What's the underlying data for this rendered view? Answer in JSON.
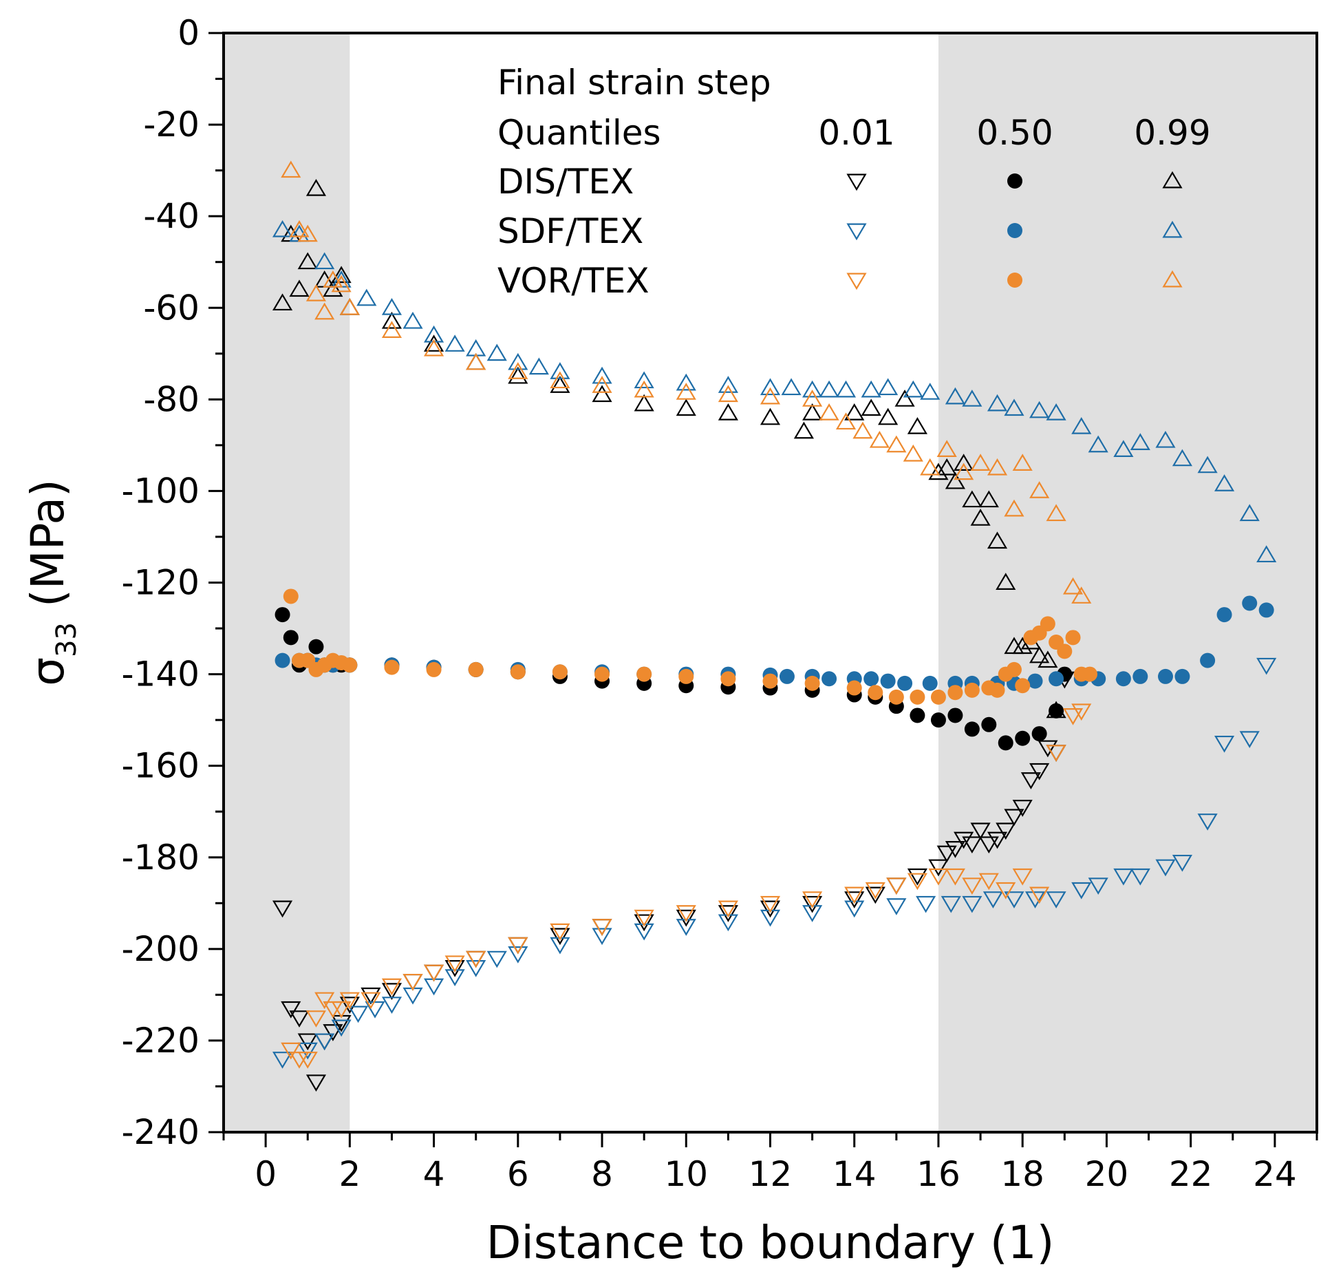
{
  "chart_data": {
    "type": "scatter",
    "xlabel": "Distance to boundary (1)",
    "ylabel": "σ33 (MPa)",
    "ylabel_main": "σ",
    "ylabel_sub": "33",
    "ylabel_unit": "(MPa)",
    "xlim": [
      -1,
      25
    ],
    "ylim": [
      -240,
      0
    ],
    "x_ticks": [
      0,
      2,
      4,
      6,
      8,
      10,
      12,
      14,
      16,
      18,
      20,
      22,
      24
    ],
    "y_ticks": [
      0,
      -20,
      -40,
      -60,
      -80,
      -100,
      -120,
      -140,
      -160,
      -180,
      -200,
      -220,
      -240
    ],
    "x_tick_labels": [
      "0",
      "2",
      "4",
      "6",
      "8",
      "10",
      "12",
      "14",
      "16",
      "18",
      "20",
      "22",
      "24"
    ],
    "y_tick_labels": [
      "0",
      "-20",
      "-40",
      "-60",
      "-80",
      "-100",
      "-120",
      "-140",
      "-160",
      "-180",
      "-200",
      "-220",
      "-240"
    ],
    "shaded_regions": [
      [
        -1,
        2
      ],
      [
        16,
        25
      ]
    ],
    "legend": {
      "title": "Final strain step",
      "header_label": "Quantiles",
      "quantiles": [
        "0.01",
        "0.50",
        "0.99"
      ],
      "rows": [
        "DIS/TEX",
        "SDF/TEX",
        "VOR/TEX"
      ]
    },
    "colors": {
      "DIS/TEX": "#000000",
      "SDF/TEX": "#1f6ea8",
      "VOR/TEX": "#ee8a2e",
      "shade": "#e0e0e0"
    },
    "marker_by_quantile": {
      "0.01": "triangle-down-open",
      "0.50": "circle-filled",
      "0.99": "triangle-up-open"
    },
    "series": [
      {
        "name": "DIS/TEX",
        "quantile": "0.01",
        "x": [
          0.4,
          0.6,
          0.8,
          1.0,
          1.2,
          1.4,
          1.6,
          1.8,
          2.0,
          2.5,
          3,
          3.5,
          4,
          4.5,
          5,
          6,
          7,
          8,
          9,
          10,
          11,
          12,
          13,
          14,
          14.5,
          15,
          15.5,
          16,
          16.2,
          16.4,
          16.6,
          16.8,
          17,
          17.2,
          17.4,
          17.6,
          17.8,
          18,
          18.2,
          18.4,
          18.6,
          18.8,
          19.0
        ],
        "y": [
          -191,
          -213,
          -215,
          -220,
          -229,
          -220,
          -218,
          -216,
          -212,
          -210,
          -209,
          -207,
          -205,
          -204,
          -202,
          -199,
          -197,
          -195,
          -194,
          -193,
          -192,
          -191,
          -190,
          -189,
          -188,
          -186,
          -184,
          -182,
          -179,
          -178,
          -176,
          -177,
          -174,
          -177,
          -176,
          -174,
          -171,
          -169,
          -163,
          -161,
          -156,
          -157,
          -141
        ]
      },
      {
        "name": "DIS/TEX",
        "quantile": "0.50",
        "x": [
          0.4,
          0.6,
          0.8,
          1.0,
          1.2,
          1.4,
          1.6,
          1.8,
          2,
          3,
          4,
          5,
          6,
          7,
          8,
          9,
          10,
          11,
          12,
          13,
          14,
          14.5,
          15,
          15.5,
          16,
          16.4,
          16.8,
          17.2,
          17.6,
          18,
          18.4,
          18.8,
          19
        ],
        "y": [
          -127,
          -132,
          -138,
          -137,
          -134,
          -138,
          -138,
          -138,
          -138,
          -138,
          -138.5,
          -139,
          -139.5,
          -140.5,
          -141.5,
          -142,
          -142.5,
          -142.8,
          -143,
          -143.5,
          -144.5,
          -145,
          -147,
          -149,
          -150,
          -149,
          -152,
          -151,
          -155,
          -154,
          -153,
          -148,
          -140
        ]
      },
      {
        "name": "DIS/TEX",
        "quantile": "0.99",
        "x": [
          0.4,
          0.6,
          0.8,
          1.0,
          1.2,
          1.4,
          1.6,
          1.8,
          2,
          3,
          4,
          5,
          6,
          7,
          8,
          9,
          10,
          11,
          12,
          12.8,
          13,
          14,
          14.4,
          14.8,
          15.2,
          15.5,
          16,
          16.2,
          16.4,
          16.6,
          16.8,
          17,
          17.2,
          17.4,
          17.6,
          17.8,
          18,
          18.2,
          18.4,
          18.6,
          18.8
        ],
        "y": [
          -59,
          -44,
          -56,
          -50,
          -34,
          -54,
          -56,
          -53,
          -60,
          -63,
          -68,
          -72,
          -75,
          -77,
          -79,
          -81,
          -82,
          -83,
          -84,
          -87,
          -83,
          -83,
          -82,
          -84,
          -80,
          -86,
          -96,
          -95,
          -98,
          -94,
          -102,
          -106,
          -102,
          -111,
          -120,
          -134,
          -134,
          -133,
          -136,
          -137,
          -148
        ]
      },
      {
        "name": "SDF/TEX",
        "quantile": "0.01",
        "x": [
          0.4,
          1,
          1.4,
          1.8,
          2.2,
          2.6,
          3,
          3.5,
          4,
          4.5,
          5,
          5.5,
          6,
          7,
          8,
          9,
          10,
          11,
          12,
          13,
          14,
          15,
          15.7,
          16.3,
          16.8,
          17.3,
          17.8,
          18.3,
          18.8,
          19.4,
          19.8,
          20.4,
          20.8,
          21.4,
          21.8,
          22.4,
          22.8,
          23.4,
          23.8
        ],
        "y": [
          -224,
          -222,
          -220,
          -217,
          -214,
          -213,
          -212,
          -210,
          -208,
          -206,
          -204,
          -202,
          -201,
          -199,
          -197,
          -196,
          -195,
          -194,
          -193,
          -192,
          -191,
          -190.5,
          -190,
          -190,
          -190,
          -189,
          -189,
          -189,
          -189,
          -187,
          -186,
          -184,
          -184,
          -182,
          -181,
          -172,
          -155,
          -154,
          -138
        ]
      },
      {
        "name": "SDF/TEX",
        "quantile": "0.50",
        "x": [
          0.4,
          0.8,
          1.2,
          1.6,
          2,
          3,
          4,
          5,
          6,
          7,
          8,
          9,
          10,
          11,
          12,
          12.4,
          13,
          13.4,
          14,
          14.4,
          14.8,
          15.2,
          15.8,
          16.4,
          16.8,
          17.4,
          17.8,
          18.3,
          18.8,
          19.4,
          19.8,
          20.4,
          20.8,
          21.4,
          21.8,
          22.4,
          22.8,
          23.4,
          23.8
        ],
        "y": [
          -137,
          -137,
          -138,
          -138,
          -138,
          -138,
          -138.5,
          -139,
          -139,
          -139.5,
          -139.5,
          -140,
          -140,
          -140,
          -140.2,
          -140.5,
          -140.5,
          -141,
          -141,
          -141,
          -141.5,
          -142,
          -142,
          -142,
          -142,
          -142,
          -142,
          -141.5,
          -141,
          -141,
          -141,
          -141,
          -140.5,
          -140.5,
          -140.5,
          -137,
          -127,
          -124.5,
          -126
        ]
      },
      {
        "name": "SDF/TEX",
        "quantile": "0.99",
        "x": [
          0.4,
          0.8,
          1.4,
          1.8,
          2.4,
          3,
          3.5,
          4,
          4.5,
          5,
          5.5,
          6,
          6.5,
          7,
          8,
          9,
          10,
          11,
          12,
          12.5,
          13,
          13.4,
          13.8,
          14.4,
          14.8,
          15.4,
          15.8,
          16.4,
          16.8,
          17.4,
          17.8,
          18.4,
          18.8,
          19.4,
          19.8,
          20.4,
          20.8,
          21.4,
          21.8,
          22.4,
          22.8,
          23.4,
          23.8
        ],
        "y": [
          -43,
          -44,
          -50,
          -54,
          -58,
          -60,
          -63,
          -66,
          -68,
          -69,
          -70,
          -72,
          -73,
          -74,
          -75,
          -76,
          -76.5,
          -77,
          -77.5,
          -77.5,
          -78,
          -78,
          -78,
          -78,
          -77.5,
          -78,
          -78.5,
          -79.5,
          -80,
          -81,
          -82,
          -82.5,
          -83,
          -86,
          -90,
          -91,
          -89.5,
          -89,
          -93,
          -94.5,
          -98.5,
          -105,
          -114
        ]
      },
      {
        "name": "VOR/TEX",
        "quantile": "0.01",
        "x": [
          0.6,
          0.8,
          1.0,
          1.2,
          1.4,
          1.6,
          1.8,
          2.0,
          2.5,
          3,
          3.5,
          4,
          4.5,
          5,
          6,
          7,
          8,
          9,
          10,
          11,
          12,
          13,
          14,
          14.5,
          15,
          15.5,
          16,
          16.4,
          16.8,
          17.2,
          17.6,
          18,
          18.4,
          18.8,
          19.2,
          19.4
        ],
        "y": [
          -222,
          -224,
          -224,
          -215,
          -211,
          -213,
          -213,
          -211,
          -211,
          -208,
          -207,
          -205,
          -203,
          -202,
          -199,
          -196,
          -195,
          -193,
          -192,
          -191,
          -190,
          -189,
          -188,
          -187,
          -186,
          -185,
          -184,
          -184,
          -186,
          -185,
          -187,
          -184,
          -188,
          -157,
          -149,
          -148
        ]
      },
      {
        "name": "VOR/TEX",
        "quantile": "0.50",
        "x": [
          0.6,
          0.8,
          1.0,
          1.2,
          1.4,
          1.6,
          1.8,
          2,
          3,
          4,
          5,
          6,
          7,
          8,
          9,
          10,
          11,
          12,
          13,
          14,
          14.5,
          15,
          15.5,
          16,
          16.4,
          16.8,
          17.2,
          17.4,
          17.6,
          17.8,
          18,
          18.2,
          18.4,
          18.6,
          18.8,
          19,
          19.2,
          19.4,
          19.6
        ],
        "y": [
          -123,
          -137,
          -137,
          -139,
          -138,
          -137,
          -137.5,
          -138,
          -138.5,
          -139,
          -139,
          -139.5,
          -139.5,
          -140,
          -140,
          -140.5,
          -141,
          -141.5,
          -142,
          -143,
          -144,
          -145,
          -145,
          -145,
          -144,
          -143.5,
          -143,
          -143.5,
          -140,
          -139,
          -142.5,
          -132,
          -131,
          -129,
          -133,
          -135,
          -132,
          -140,
          -140
        ]
      },
      {
        "name": "VOR/TEX",
        "quantile": "0.99",
        "x": [
          0.6,
          0.8,
          1.0,
          1.2,
          1.4,
          1.6,
          1.8,
          2,
          3,
          4,
          5,
          6,
          7,
          8,
          9,
          10,
          11,
          12,
          13,
          13.4,
          13.8,
          14.2,
          14.6,
          15,
          15.4,
          15.8,
          16.2,
          16.6,
          17,
          17.4,
          17.8,
          18,
          18.4,
          18.8,
          19.2,
          19.4
        ],
        "y": [
          -30,
          -43,
          -44,
          -57,
          -61,
          -54,
          -55,
          -60,
          -65,
          -69,
          -72,
          -74,
          -76,
          -77,
          -78,
          -78.5,
          -79,
          -79.5,
          -80,
          -83,
          -85,
          -87,
          -89,
          -90,
          -92,
          -95,
          -91,
          -96,
          -94,
          -95,
          -104,
          -94,
          -100,
          -105,
          -121,
          -123
        ]
      }
    ]
  }
}
